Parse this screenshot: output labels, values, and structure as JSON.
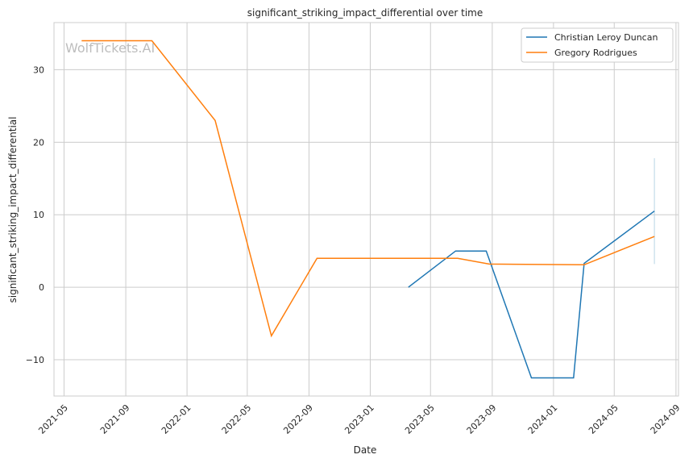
{
  "chart_data": {
    "type": "line",
    "title": "significant_striking_impact_differential over time",
    "xlabel": "Date",
    "ylabel": "significant_striking_impact_differential",
    "watermark": "WolfTickets.AI",
    "x_ticks": [
      "2021-05",
      "2021-09",
      "2022-01",
      "2022-05",
      "2022-09",
      "2023-01",
      "2023-05",
      "2023-09",
      "2024-01",
      "2024-05",
      "2024-09"
    ],
    "y_ticks": [
      -10,
      0,
      10,
      20,
      30
    ],
    "xlim": [
      "2021-04-11",
      "2024-09-06"
    ],
    "ylim": [
      -15,
      36.5
    ],
    "grid": true,
    "legend_position": "top-right",
    "series": [
      {
        "name": "Christian Leroy Duncan",
        "color": "#1f77b4",
        "points": [
          {
            "x": "2023-03-18",
            "y": 0
          },
          {
            "x": "2023-06-20",
            "y": 5
          },
          {
            "x": "2023-08-20",
            "y": 5
          },
          {
            "x": "2023-11-18",
            "y": -12.5
          },
          {
            "x": "2024-02-10",
            "y": -12.5
          },
          {
            "x": "2024-03-02",
            "y": 3.3
          },
          {
            "x": "2024-07-20",
            "y": 10.5
          }
        ]
      },
      {
        "name": "Gregory Rodrigues",
        "color": "#ff7f0e",
        "points": [
          {
            "x": "2021-06-05",
            "y": 34
          },
          {
            "x": "2021-10-23",
            "y": 34
          },
          {
            "x": "2022-02-26",
            "y": 23
          },
          {
            "x": "2022-06-18",
            "y": -6.7
          },
          {
            "x": "2022-09-17",
            "y": 4
          },
          {
            "x": "2023-06-24",
            "y": 4
          },
          {
            "x": "2023-08-26",
            "y": 3.2
          },
          {
            "x": "2024-03-02",
            "y": 3.1
          },
          {
            "x": "2024-07-20",
            "y": 7
          }
        ]
      }
    ],
    "error_bar": {
      "x": "2024-07-20",
      "ymin": 3.2,
      "ymax": 17.8,
      "color": "#b8d4e6"
    }
  }
}
